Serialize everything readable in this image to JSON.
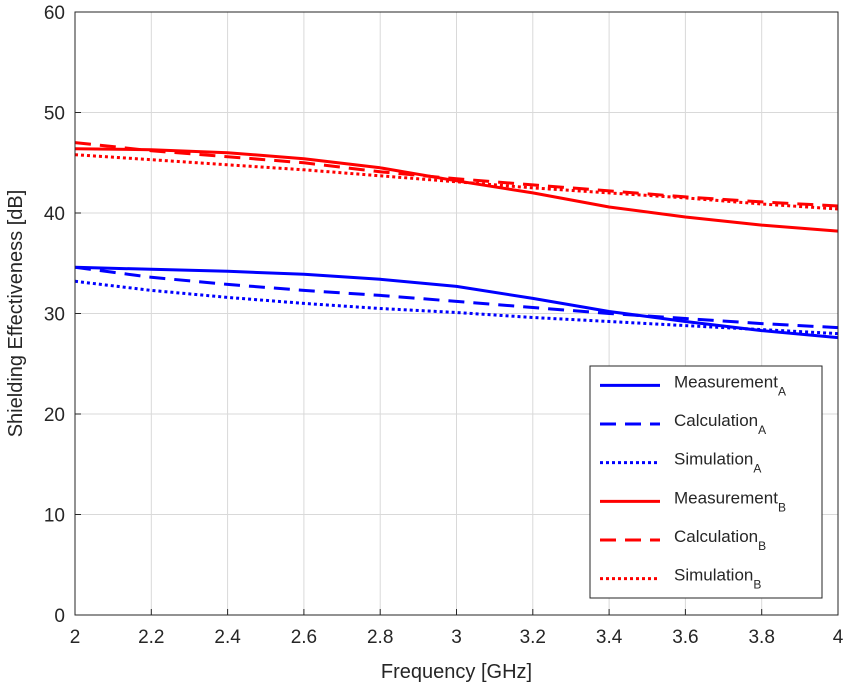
{
  "chart_data": {
    "type": "line",
    "xlabel": "Frequency [GHz]",
    "ylabel": "Shielding Effectiveness [dB]",
    "xlim": [
      2,
      4
    ],
    "ylim": [
      0,
      60
    ],
    "xticks": [
      "2",
      "2.2",
      "2.4",
      "2.6",
      "2.8",
      "3",
      "3.2",
      "3.4",
      "3.6",
      "3.8",
      "4"
    ],
    "yticks": [
      "0",
      "10",
      "20",
      "30",
      "40",
      "50",
      "60"
    ],
    "grid": true,
    "legend_position": "bottom-right",
    "x": [
      2.0,
      2.2,
      2.4,
      2.6,
      2.8,
      3.0,
      3.2,
      3.4,
      3.6,
      3.8,
      4.0
    ],
    "series": [
      {
        "name": "Measurement",
        "subscript": "A",
        "color": "#0000ff",
        "style": "solid",
        "values": [
          34.6,
          34.4,
          34.2,
          33.9,
          33.4,
          32.7,
          31.5,
          30.2,
          29.2,
          28.3,
          27.6
        ]
      },
      {
        "name": "Calculation",
        "subscript": "A",
        "color": "#0000ff",
        "style": "dashed",
        "values": [
          34.6,
          33.6,
          32.9,
          32.3,
          31.8,
          31.2,
          30.6,
          30.0,
          29.5,
          29.0,
          28.6
        ]
      },
      {
        "name": "Simulation",
        "subscript": "A",
        "color": "#0000ff",
        "style": "dotted",
        "values": [
          33.2,
          32.3,
          31.6,
          31.0,
          30.5,
          30.1,
          29.6,
          29.2,
          28.8,
          28.4,
          28.0
        ]
      },
      {
        "name": "Measurement",
        "subscript": "B",
        "color": "#ff0000",
        "style": "solid",
        "values": [
          46.4,
          46.3,
          46.0,
          45.4,
          44.5,
          43.2,
          42.0,
          40.6,
          39.6,
          38.8,
          38.2
        ]
      },
      {
        "name": "Calculation",
        "subscript": "B",
        "color": "#ff0000",
        "style": "dashed",
        "values": [
          47.0,
          46.2,
          45.6,
          45.0,
          44.1,
          43.4,
          42.8,
          42.2,
          41.6,
          41.1,
          40.7
        ]
      },
      {
        "name": "Simulation",
        "subscript": "B",
        "color": "#ff0000",
        "style": "dotted",
        "values": [
          45.8,
          45.3,
          44.8,
          44.3,
          43.7,
          43.1,
          42.5,
          42.0,
          41.5,
          40.9,
          40.4
        ]
      }
    ]
  }
}
